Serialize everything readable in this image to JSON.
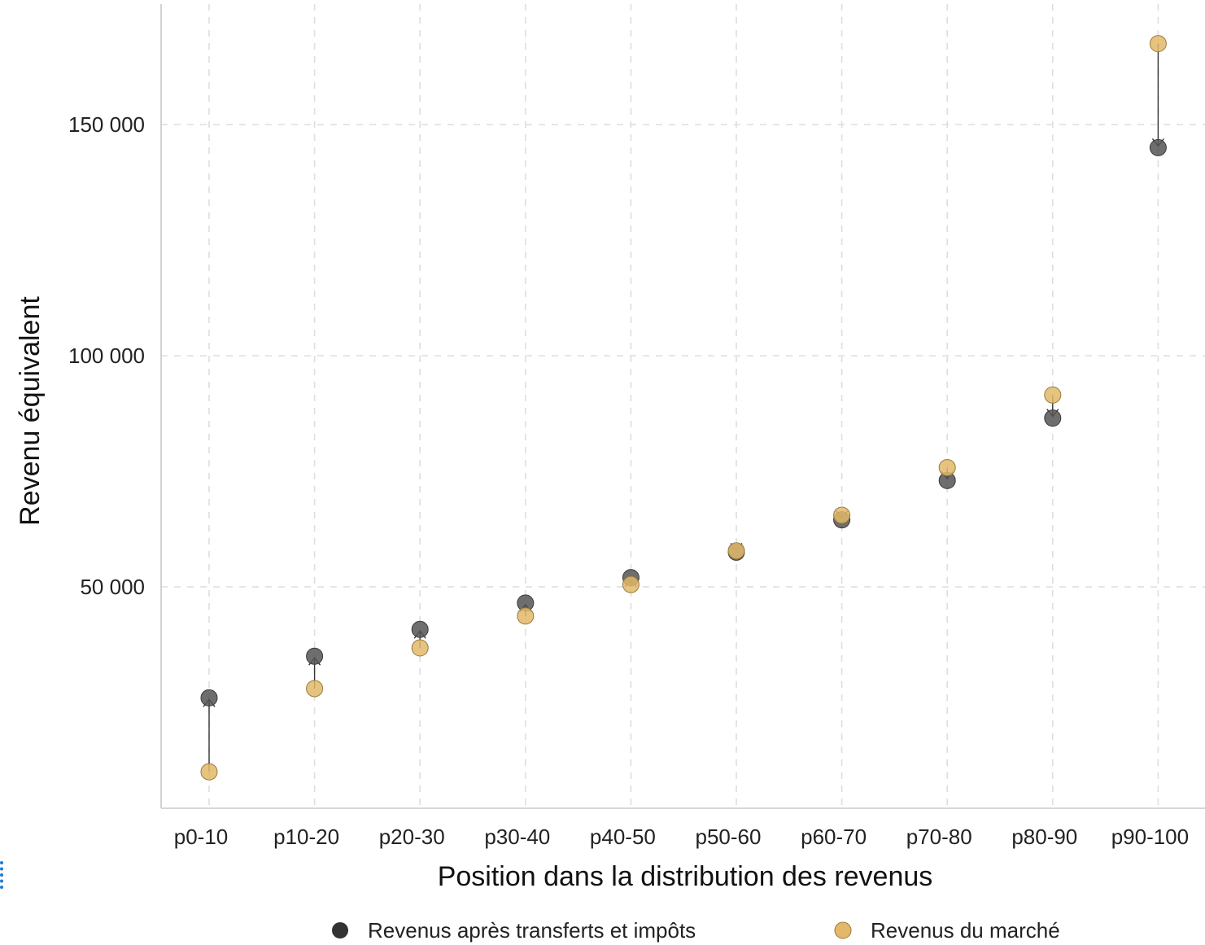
{
  "chart_data": {
    "type": "scatter",
    "xlabel": "Position dans la distribution des revenus",
    "ylabel": "Revenu équivalent",
    "categories": [
      "p0-10",
      "p10-20",
      "p20-30",
      "p30-40",
      "p40-50",
      "p50-60",
      "p60-70",
      "p70-80",
      "p80-90",
      "p90-100"
    ],
    "ylim": [
      3000,
      175000
    ],
    "yticks": [
      50000,
      100000,
      150000
    ],
    "ytick_labels": [
      "50 000",
      "100 000",
      "150 000"
    ],
    "grid": true,
    "legend_position": "bottom",
    "series": [
      {
        "name": "Revenus après transferts et impôts",
        "color": "#555555",
        "values": [
          26000,
          35000,
          40800,
          46500,
          52000,
          57500,
          64500,
          73000,
          86500,
          145000
        ]
      },
      {
        "name": "Revenus du marché",
        "color": "#e3b86a",
        "values": [
          10000,
          28000,
          36800,
          43700,
          50500,
          57800,
          65500,
          75800,
          91500,
          167500
        ]
      }
    ],
    "arrows": "from Revenus du marché to Revenus après transferts et impôts"
  }
}
